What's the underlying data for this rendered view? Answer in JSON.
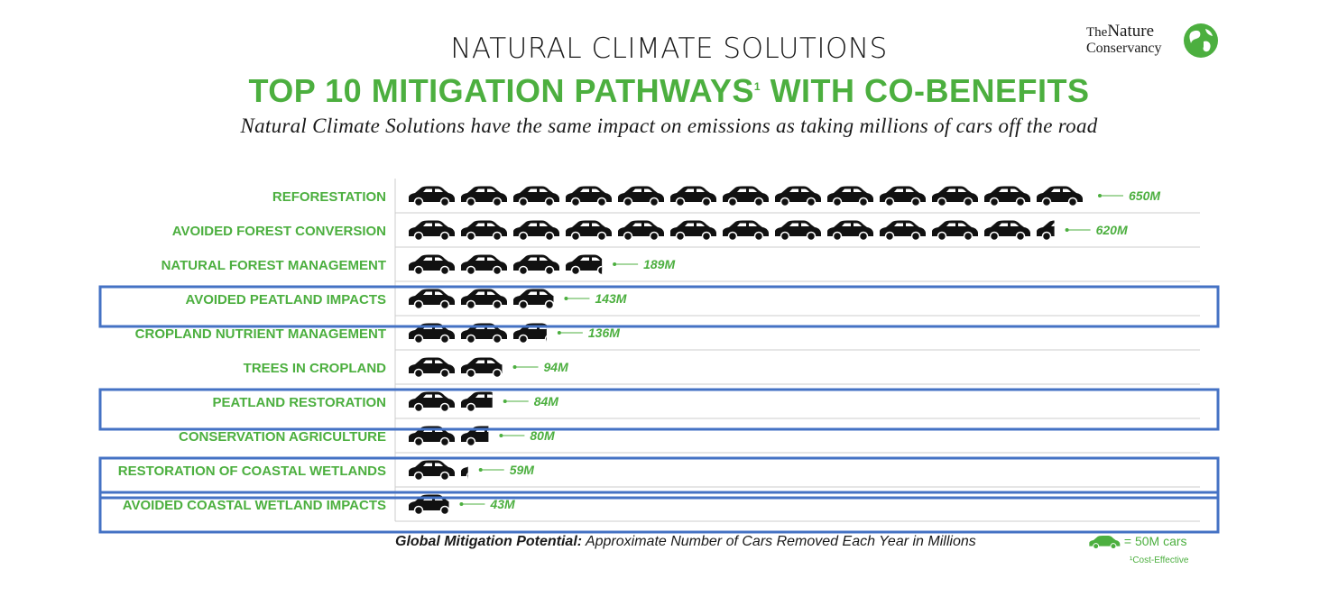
{
  "header": {
    "title": "NATURAL CLIMATE SOLUTIONS",
    "subtitle_main": "TOP 10 MITIGATION PATHWAYS",
    "subtitle_sup": "1",
    "subtitle_end": " WITH CO-BENEFITS",
    "tagline": "Natural Climate Solutions have the same impact on emissions as taking millions of cars off the road"
  },
  "logo": {
    "line1_a": "The",
    "line1_b": "Nature",
    "line2": "Conservancy"
  },
  "colors": {
    "accent": "#4caf3f",
    "car": "#111111",
    "highlight": "#4472c4",
    "grid": "#cccccc"
  },
  "footer": {
    "xlabel_bold": "Global Mitigation Potential:",
    "xlabel_rest": " Approximate Number of Cars Removed Each Year in Millions",
    "legend_label": "= 50M cars",
    "footnote": "¹Cost-Effective"
  },
  "chart_data": {
    "type": "bar",
    "unit_per_icon": 50,
    "categories": [
      "REFORESTATION",
      "AVOIDED FOREST CONVERSION",
      "NATURAL FOREST MANAGEMENT",
      "AVOIDED PEATLAND IMPACTS",
      "CROPLAND NUTRIENT MANAGEMENT",
      "TREES IN CROPLAND",
      "PEATLAND RESTORATION",
      "CONSERVATION AGRICULTURE",
      "RESTORATION OF COASTAL WETLANDS",
      "AVOIDED COASTAL WETLAND IMPACTS"
    ],
    "values": [
      650,
      620,
      189,
      143,
      136,
      94,
      84,
      80,
      59,
      43
    ],
    "value_labels": [
      "650M",
      "620M",
      "189M",
      "143M",
      "136M",
      "94M",
      "84M",
      "80M",
      "59M",
      "43M"
    ],
    "highlighted": [
      "AVOIDED PEATLAND IMPACTS",
      "PEATLAND RESTORATION",
      "RESTORATION OF COASTAL WETLANDS",
      "AVOIDED COASTAL WETLAND IMPACTS"
    ],
    "xlabel": "Global Mitigation Potential: Approximate Number of Cars Removed Each Year in Millions"
  }
}
